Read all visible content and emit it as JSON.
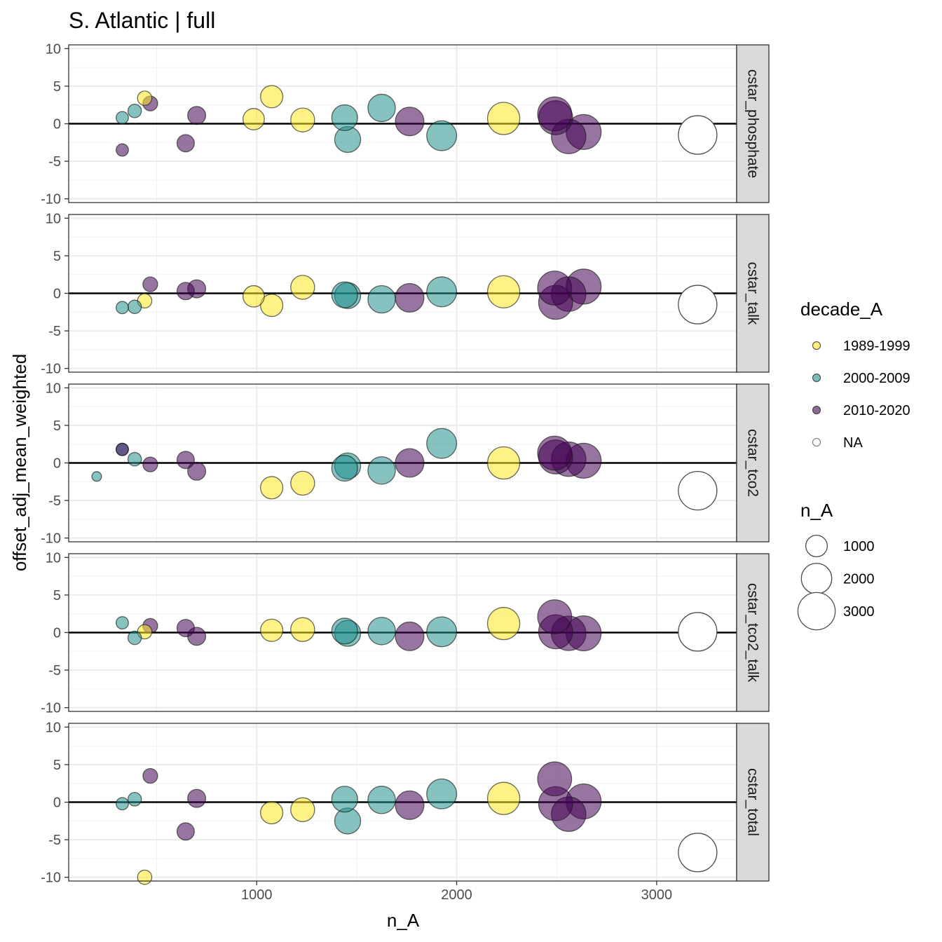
{
  "title": "S. Atlantic | full",
  "chart_data": {
    "type": "scatter",
    "title": "S. Atlantic | full",
    "xlabel": "n_A",
    "ylabel": "offset_adj_mean_weighted",
    "xlim": [
      60,
      3400
    ],
    "ylim": [
      -10.5,
      10.5
    ],
    "x_ticks": [
      1000,
      2000,
      3000
    ],
    "y_ticks": [
      -10,
      -5,
      0,
      5,
      10
    ],
    "hline_y": 0,
    "grid": true,
    "colors": {
      "1989-1999": "#FDE725",
      "2000-2009": "#21908C",
      "2010-2020": "#440154",
      "NA": "#ffffff"
    },
    "facets": [
      {
        "label": "cstar_phosphate",
        "points": [
          {
            "x": 328,
            "y": 0.8,
            "decade": "2000-2009"
          },
          {
            "x": 390,
            "y": 1.7,
            "decade": "2000-2009"
          },
          {
            "x": 440,
            "y": 3.4,
            "decade": "1989-1999"
          },
          {
            "x": 468,
            "y": 2.7,
            "decade": "2010-2020"
          },
          {
            "x": 328,
            "y": -3.5,
            "decade": "2010-2020"
          },
          {
            "x": 700,
            "y": 1.1,
            "decade": "2010-2020"
          },
          {
            "x": 645,
            "y": -2.6,
            "decade": "2010-2020"
          },
          {
            "x": 985,
            "y": 0.6,
            "decade": "1989-1999"
          },
          {
            "x": 1075,
            "y": 3.6,
            "decade": "1989-1999"
          },
          {
            "x": 1230,
            "y": 0.5,
            "decade": "1989-1999"
          },
          {
            "x": 1440,
            "y": 0.8,
            "decade": "2000-2009"
          },
          {
            "x": 1455,
            "y": -2.1,
            "decade": "2000-2009"
          },
          {
            "x": 1625,
            "y": 2.1,
            "decade": "2000-2009"
          },
          {
            "x": 1765,
            "y": 0.3,
            "decade": "2010-2020"
          },
          {
            "x": 1925,
            "y": -1.6,
            "decade": "2000-2009"
          },
          {
            "x": 2235,
            "y": 0.7,
            "decade": "1989-1999"
          },
          {
            "x": 2490,
            "y": 1.3,
            "decade": "2010-2020"
          },
          {
            "x": 2495,
            "y": 0.8,
            "decade": "2010-2020"
          },
          {
            "x": 2560,
            "y": -1.7,
            "decade": "2010-2020"
          },
          {
            "x": 2635,
            "y": -1.1,
            "decade": "2010-2020"
          },
          {
            "x": 3205,
            "y": -1.5,
            "decade": "NA"
          }
        ]
      },
      {
        "label": "cstar_talk",
        "points": [
          {
            "x": 328,
            "y": -1.9,
            "decade": "2000-2009"
          },
          {
            "x": 390,
            "y": -1.8,
            "decade": "2000-2009"
          },
          {
            "x": 440,
            "y": -1.0,
            "decade": "1989-1999"
          },
          {
            "x": 468,
            "y": 1.2,
            "decade": "2010-2020"
          },
          {
            "x": 645,
            "y": 0.3,
            "decade": "2010-2020"
          },
          {
            "x": 700,
            "y": 0.6,
            "decade": "2010-2020"
          },
          {
            "x": 985,
            "y": -0.4,
            "decade": "1989-1999"
          },
          {
            "x": 1075,
            "y": -1.6,
            "decade": "1989-1999"
          },
          {
            "x": 1230,
            "y": 0.8,
            "decade": "1989-1999"
          },
          {
            "x": 1440,
            "y": -0.2,
            "decade": "2000-2009"
          },
          {
            "x": 1455,
            "y": -0.3,
            "decade": "2000-2009"
          },
          {
            "x": 1625,
            "y": -0.8,
            "decade": "2000-2009"
          },
          {
            "x": 1765,
            "y": -0.6,
            "decade": "2010-2020"
          },
          {
            "x": 1925,
            "y": 0.2,
            "decade": "2000-2009"
          },
          {
            "x": 2235,
            "y": 0.2,
            "decade": "1989-1999"
          },
          {
            "x": 2490,
            "y": 0.7,
            "decade": "2010-2020"
          },
          {
            "x": 2495,
            "y": -1.2,
            "decade": "2010-2020"
          },
          {
            "x": 2560,
            "y": -0.1,
            "decade": "2010-2020"
          },
          {
            "x": 2635,
            "y": 0.9,
            "decade": "2010-2020"
          },
          {
            "x": 3205,
            "y": -1.5,
            "decade": "NA"
          }
        ]
      },
      {
        "label": "cstar_tco2",
        "points": [
          {
            "x": 200,
            "y": -1.8,
            "decade": "2000-2009"
          },
          {
            "x": 328,
            "y": 1.8,
            "decade": "2000-2009"
          },
          {
            "x": 328,
            "y": 1.8,
            "decade": "2010-2020"
          },
          {
            "x": 390,
            "y": 0.5,
            "decade": "2000-2009"
          },
          {
            "x": 468,
            "y": -0.2,
            "decade": "2010-2020"
          },
          {
            "x": 645,
            "y": 0.4,
            "decade": "2010-2020"
          },
          {
            "x": 700,
            "y": -1.1,
            "decade": "2010-2020"
          },
          {
            "x": 1075,
            "y": -3.3,
            "decade": "1989-1999"
          },
          {
            "x": 1230,
            "y": -2.7,
            "decade": "1989-1999"
          },
          {
            "x": 1440,
            "y": -0.7,
            "decade": "2000-2009"
          },
          {
            "x": 1455,
            "y": -0.4,
            "decade": "2000-2009"
          },
          {
            "x": 1625,
            "y": -1.0,
            "decade": "2000-2009"
          },
          {
            "x": 1765,
            "y": 0.0,
            "decade": "2010-2020"
          },
          {
            "x": 1925,
            "y": 2.6,
            "decade": "2000-2009"
          },
          {
            "x": 2235,
            "y": 0.0,
            "decade": "1989-1999"
          },
          {
            "x": 2490,
            "y": 1.3,
            "decade": "2010-2020"
          },
          {
            "x": 2495,
            "y": 0.8,
            "decade": "2010-2020"
          },
          {
            "x": 2560,
            "y": 0.5,
            "decade": "2010-2020"
          },
          {
            "x": 2635,
            "y": 0.3,
            "decade": "2010-2020"
          },
          {
            "x": 3205,
            "y": -3.7,
            "decade": "NA"
          }
        ]
      },
      {
        "label": "cstar_tco2_talk",
        "points": [
          {
            "x": 328,
            "y": 1.3,
            "decade": "2000-2009"
          },
          {
            "x": 390,
            "y": -0.7,
            "decade": "2000-2009"
          },
          {
            "x": 440,
            "y": 0.1,
            "decade": "1989-1999"
          },
          {
            "x": 468,
            "y": 0.9,
            "decade": "2010-2020"
          },
          {
            "x": 645,
            "y": 0.6,
            "decade": "2010-2020"
          },
          {
            "x": 700,
            "y": -0.5,
            "decade": "2010-2020"
          },
          {
            "x": 1075,
            "y": 0.3,
            "decade": "1989-1999"
          },
          {
            "x": 1230,
            "y": 0.4,
            "decade": "1989-1999"
          },
          {
            "x": 1440,
            "y": 0.2,
            "decade": "2000-2009"
          },
          {
            "x": 1455,
            "y": -0.1,
            "decade": "2000-2009"
          },
          {
            "x": 1625,
            "y": 0.2,
            "decade": "2000-2009"
          },
          {
            "x": 1765,
            "y": -0.5,
            "decade": "2010-2020"
          },
          {
            "x": 1925,
            "y": 0.1,
            "decade": "2000-2009"
          },
          {
            "x": 2235,
            "y": 1.2,
            "decade": "1989-1999"
          },
          {
            "x": 2490,
            "y": 2.1,
            "decade": "2010-2020"
          },
          {
            "x": 2495,
            "y": 0.1,
            "decade": "2010-2020"
          },
          {
            "x": 2560,
            "y": -0.1,
            "decade": "2010-2020"
          },
          {
            "x": 2635,
            "y": -0.1,
            "decade": "2010-2020"
          },
          {
            "x": 3205,
            "y": 0.1,
            "decade": "NA"
          }
        ]
      },
      {
        "label": "cstar_total",
        "points": [
          {
            "x": 328,
            "y": -0.2,
            "decade": "2000-2009"
          },
          {
            "x": 390,
            "y": 0.4,
            "decade": "2000-2009"
          },
          {
            "x": 468,
            "y": 3.5,
            "decade": "2010-2020"
          },
          {
            "x": 440,
            "y": -10.0,
            "decade": "1989-1999"
          },
          {
            "x": 645,
            "y": -3.9,
            "decade": "2010-2020"
          },
          {
            "x": 700,
            "y": 0.5,
            "decade": "2010-2020"
          },
          {
            "x": 1075,
            "y": -1.4,
            "decade": "1989-1999"
          },
          {
            "x": 1230,
            "y": -1.0,
            "decade": "1989-1999"
          },
          {
            "x": 1440,
            "y": 0.4,
            "decade": "2000-2009"
          },
          {
            "x": 1455,
            "y": -2.5,
            "decade": "2000-2009"
          },
          {
            "x": 1625,
            "y": 0.3,
            "decade": "2000-2009"
          },
          {
            "x": 1765,
            "y": -0.4,
            "decade": "2010-2020"
          },
          {
            "x": 1925,
            "y": 1.1,
            "decade": "2000-2009"
          },
          {
            "x": 2235,
            "y": 0.5,
            "decade": "1989-1999"
          },
          {
            "x": 2490,
            "y": 3.1,
            "decade": "2010-2020"
          },
          {
            "x": 2495,
            "y": -0.2,
            "decade": "2010-2020"
          },
          {
            "x": 2560,
            "y": -1.6,
            "decade": "2010-2020"
          },
          {
            "x": 2635,
            "y": 0.1,
            "decade": "2010-2020"
          },
          {
            "x": 3205,
            "y": -6.7,
            "decade": "NA"
          }
        ]
      }
    ],
    "legend": {
      "color_title": "decade_A",
      "color_entries": [
        "1989-1999",
        "2000-2009",
        "2010-2020",
        "NA"
      ],
      "size_title": "n_A",
      "size_entries": [
        1000,
        2000,
        3000
      ]
    }
  }
}
